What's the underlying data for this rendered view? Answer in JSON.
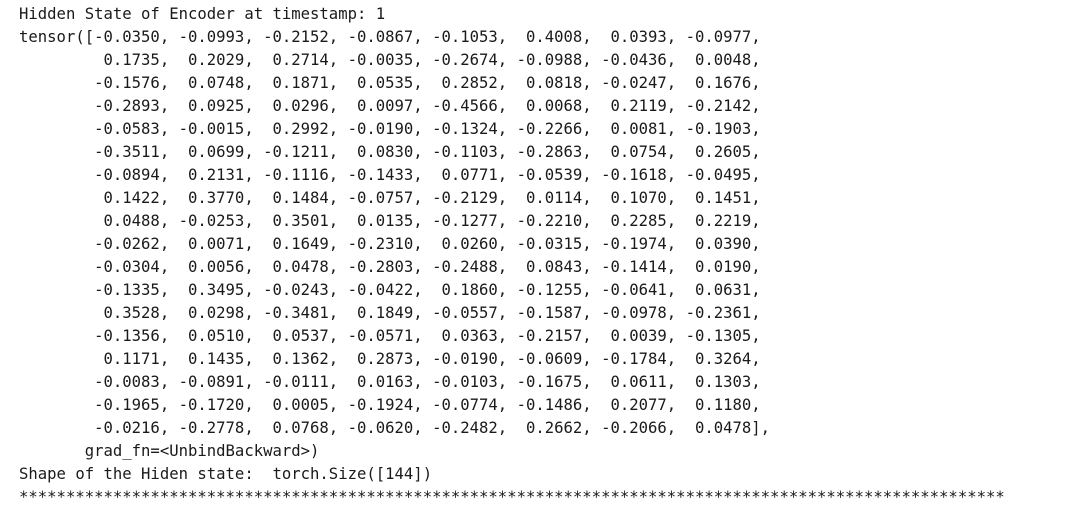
{
  "output": {
    "header": "Hidden State of Encoder at timestamp: 1",
    "tensor_lines": [
      "tensor([-0.0350, -0.0993, -0.2152, -0.0867, -0.1053,  0.4008,  0.0393, -0.0977,",
      "         0.1735,  0.2029,  0.2714, -0.0035, -0.2674, -0.0988, -0.0436,  0.0048,",
      "        -0.1576,  0.0748,  0.1871,  0.0535,  0.2852,  0.0818, -0.0247,  0.1676,",
      "        -0.2893,  0.0925,  0.0296,  0.0097, -0.4566,  0.0068,  0.2119, -0.2142,",
      "        -0.0583, -0.0015,  0.2992, -0.0190, -0.1324, -0.2266,  0.0081, -0.1903,",
      "        -0.3511,  0.0699, -0.1211,  0.0830, -0.1103, -0.2863,  0.0754,  0.2605,",
      "        -0.0894,  0.2131, -0.1116, -0.1433,  0.0771, -0.0539, -0.1618, -0.0495,",
      "         0.1422,  0.3770,  0.1484, -0.0757, -0.2129,  0.0114,  0.1070,  0.1451,",
      "         0.0488, -0.0253,  0.3501,  0.0135, -0.1277, -0.2210,  0.2285,  0.2219,",
      "        -0.0262,  0.0071,  0.1649, -0.2310,  0.0260, -0.0315, -0.1974,  0.0390,",
      "        -0.0304,  0.0056,  0.0478, -0.2803, -0.2488,  0.0843, -0.1414,  0.0190,",
      "        -0.1335,  0.3495, -0.0243, -0.0422,  0.1860, -0.1255, -0.0641,  0.0631,",
      "         0.3528,  0.0298, -0.3481,  0.1849, -0.0557, -0.1587, -0.0978, -0.2361,",
      "        -0.1356,  0.0510,  0.0537, -0.0571,  0.0363, -0.2157,  0.0039, -0.1305,",
      "         0.1171,  0.1435,  0.1362,  0.2873, -0.0190, -0.0609, -0.1784,  0.3264,",
      "        -0.0083, -0.0891, -0.0111,  0.0163, -0.0103, -0.1675,  0.0611,  0.1303,",
      "        -0.1965, -0.1720,  0.0005, -0.1924, -0.0774, -0.1486,  0.2077,  0.1180,",
      "        -0.0216, -0.2778,  0.0768, -0.0620, -0.2482,  0.2662, -0.2066,  0.0478],",
      "       grad_fn=<UnbindBackward>)"
    ],
    "shape_line": "Shape of the Hiden state:  torch.Size([144])",
    "separator": "*********************************************************************************************************"
  }
}
